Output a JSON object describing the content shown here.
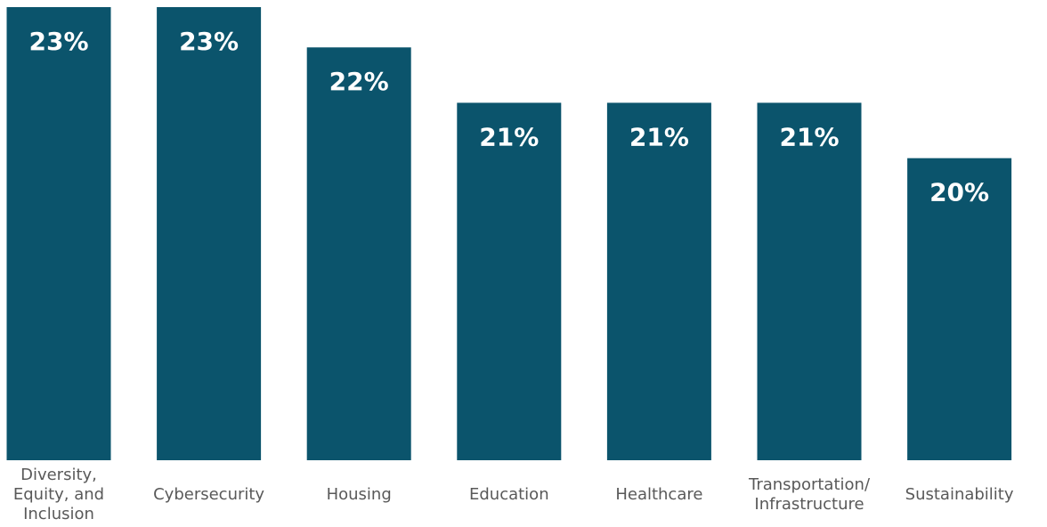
{
  "chart_data": {
    "type": "bar",
    "categories": [
      "Diversity,\nEquity, and\nInclusion",
      "Cybersecurity",
      "Housing",
      "Education",
      "Healthcare",
      "Transportation/\nInfrastructure",
      "Sustainability"
    ],
    "values": [
      23,
      23,
      22.2,
      21.1,
      21.1,
      21.1,
      20.0
    ],
    "value_labels": [
      "23%",
      "23%",
      "22%",
      "21%",
      "21%",
      "21%",
      "20%"
    ],
    "color": "#0b546c",
    "ylim": [
      14,
      23
    ]
  }
}
